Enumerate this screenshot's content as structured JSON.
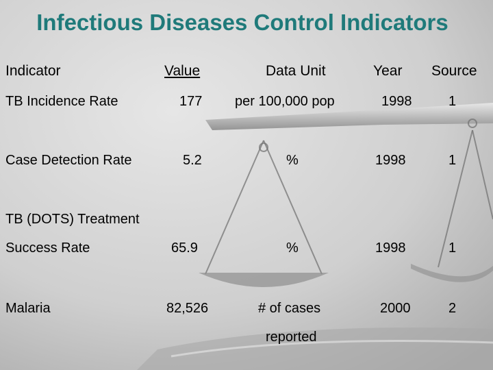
{
  "title": "Infectious Diseases Control Indicators",
  "headers": {
    "indicator": "Indicator",
    "value": "Value",
    "unit": "Data Unit",
    "year": "Year",
    "source": "Source"
  },
  "rows": [
    {
      "indicator": "TB Incidence Rate",
      "value": "177",
      "unit": "per 100,000 pop",
      "year": "1998",
      "source": "1"
    },
    {
      "indicator": "Case Detection Rate",
      "value": "5.2",
      "unit": "%",
      "year": "1998",
      "source": "1"
    },
    {
      "indicator_line1": "TB (DOTS) Treatment",
      "indicator": "Success Rate",
      "value": "65.9",
      "unit": "%",
      "year": "1998",
      "source": "1"
    },
    {
      "indicator": "Malaria",
      "value": "82,526",
      "unit": "# of cases",
      "unit_line2": "reported",
      "year": "2000",
      "source": "2"
    }
  ],
  "colors": {
    "title": "#1f7a7a",
    "background": "#c9c9c9"
  },
  "decoration": "balance-scale-image"
}
